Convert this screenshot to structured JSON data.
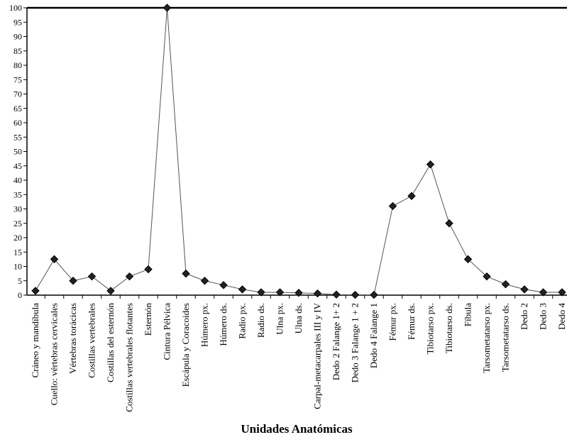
{
  "chart_data": {
    "type": "line",
    "title": "",
    "xlabel": "Unidades Anatómicas",
    "ylabel": "",
    "ylim": [
      0,
      100
    ],
    "yticks": [
      0,
      5,
      10,
      15,
      20,
      25,
      30,
      35,
      40,
      45,
      50,
      55,
      60,
      65,
      70,
      75,
      80,
      85,
      90,
      95,
      100
    ],
    "grid": false,
    "legend": "none",
    "marker": "diamond",
    "line_color": "#555555",
    "marker_color": "#222222",
    "categories": [
      "Cráneo y mandíbula",
      "Cuello: vértebras cervicales",
      "Vértebras torácicas",
      "Costillas vertebrales",
      "Costillas del esternón",
      "Costillas vertebrales flotantes",
      "Esternón",
      "Cintura Pélvica",
      "Escápula y Coracoides",
      "Húmero px.",
      "Húmero ds.",
      "Radio px.",
      "Radio ds.",
      "Ulna px.",
      "Ulna ds.",
      "Carpal-metacarpales III y IV",
      "Dedo 2 Falange 1+ 2",
      "Dedo 3 Falange 1 + 2",
      "Dedo 4 Falange 1",
      "Fémur px.",
      "Fémur ds.",
      "Tibiotarso px.",
      "Tibiotarso ds.",
      "Fíbula",
      "Tarsometatarso px.",
      "Tarsometatarso ds.",
      "Dedo 2",
      "Dedo 3",
      "Dedo 4"
    ],
    "series": [
      {
        "values": [
          1.5,
          12.5,
          5.0,
          6.5,
          1.5,
          6.5,
          9.0,
          100,
          7.5,
          5.0,
          3.5,
          2.0,
          1.0,
          1.0,
          0.8,
          0.6,
          0.2,
          0.1,
          0.1,
          31.0,
          34.5,
          45.5,
          25.0,
          12.5,
          6.5,
          3.8,
          2.0,
          1.0,
          1.0
        ]
      }
    ]
  }
}
